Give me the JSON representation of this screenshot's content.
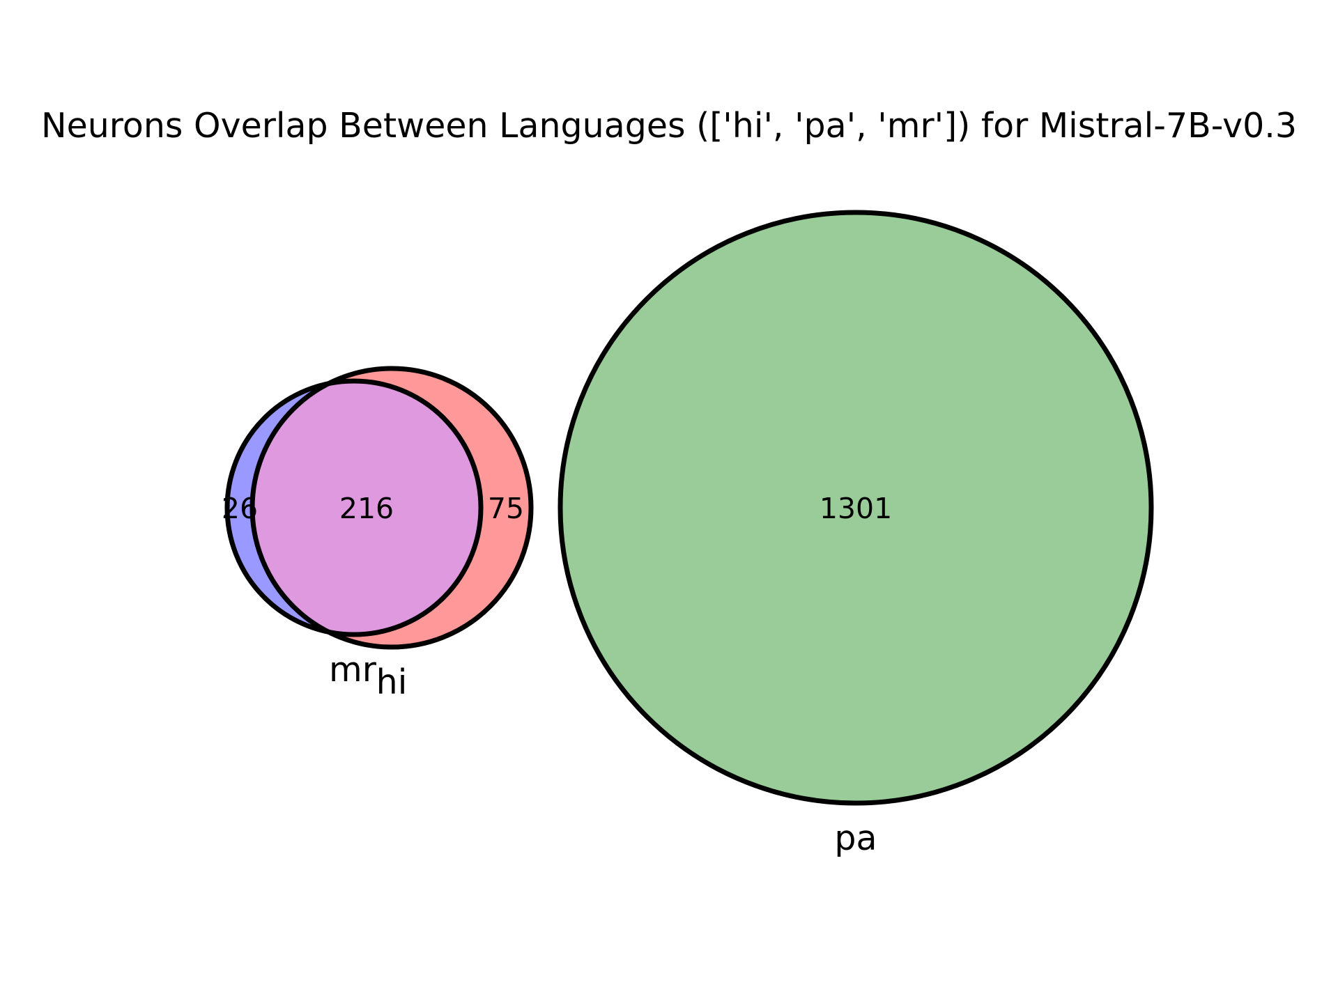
{
  "title": "Neurons Overlap Between Languages (['hi', 'pa', 'mr']) for Mistral-7B-v0.3",
  "sets": {
    "hi": {
      "label": "hi",
      "color": "#ff9999"
    },
    "pa": {
      "label": "pa",
      "color": "#99cc99"
    },
    "mr": {
      "label": "mr",
      "color": "#9999ff"
    },
    "hi_mr_overlap_color": "#df99df"
  },
  "regions": {
    "mr_only": "26",
    "hi_mr": "216",
    "hi_only": "75",
    "pa_only": "1301"
  }
}
